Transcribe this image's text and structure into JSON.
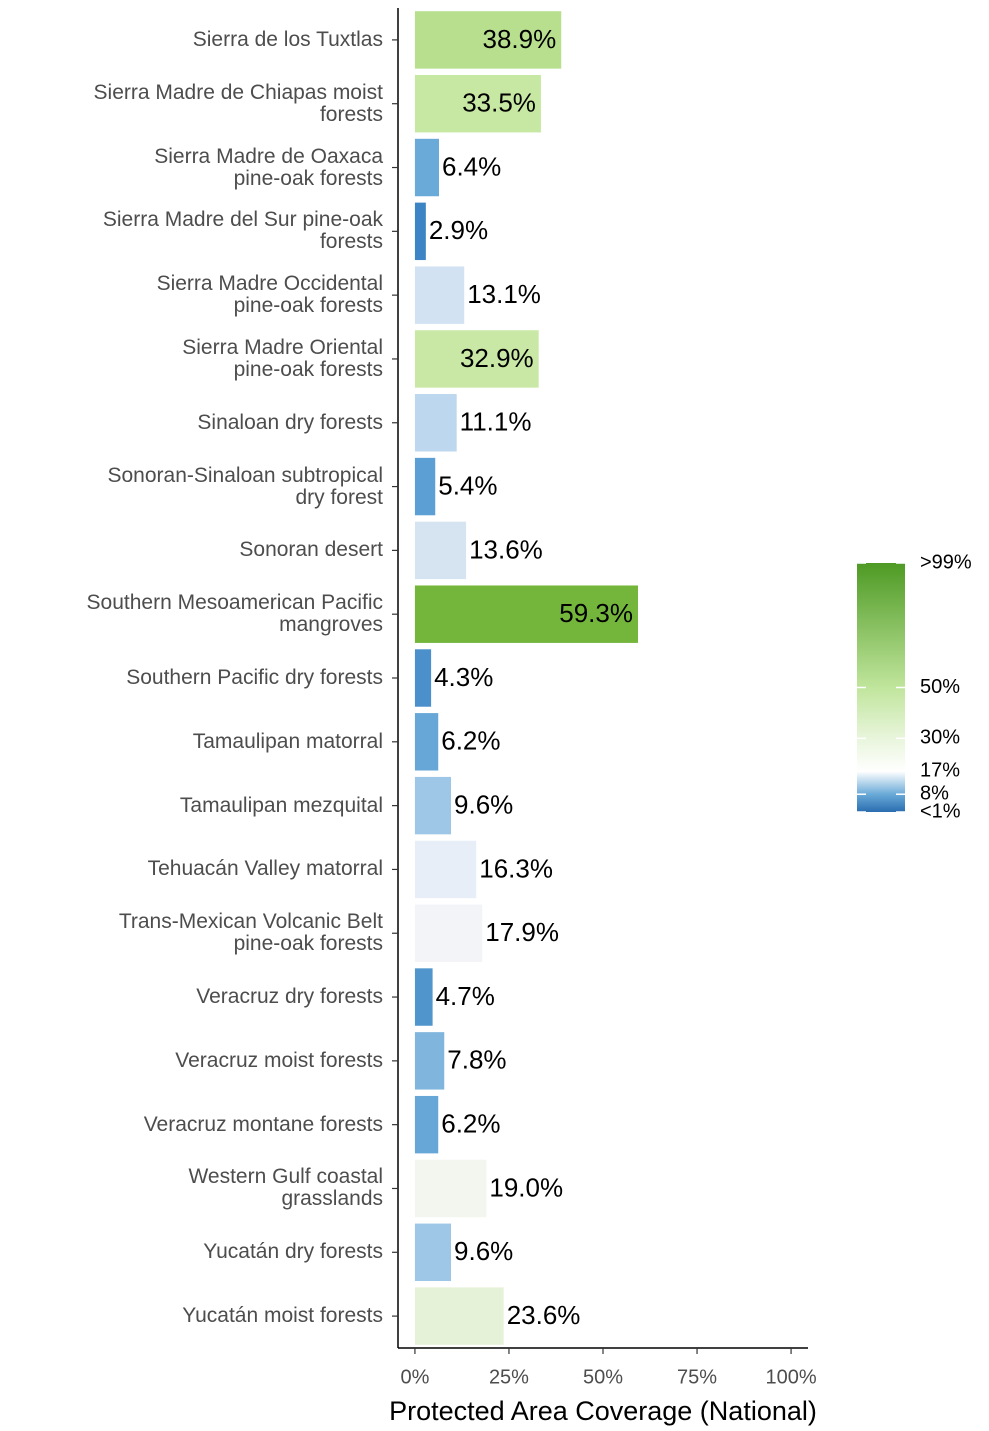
{
  "chart_data": {
    "type": "bar",
    "orientation": "horizontal",
    "categories": [
      "Sierra de los Tuxtlas",
      "Sierra Madre de Chiapas moist\nforests",
      "Sierra Madre de Oaxaca\npine-oak forests",
      "Sierra Madre del Sur pine-oak\nforests",
      "Sierra Madre Occidental\npine-oak forests",
      "Sierra Madre Oriental\npine-oak forests",
      "Sinaloan dry forests",
      "Sonoran-Sinaloan subtropical\ndry forest",
      "Sonoran desert",
      "Southern Mesoamerican Pacific\nmangroves",
      "Southern Pacific dry forests",
      "Tamaulipan matorral",
      "Tamaulipan mezquital",
      "Tehuacán Valley matorral",
      "Trans-Mexican Volcanic Belt\npine-oak forests",
      "Veracruz dry forests",
      "Veracruz moist forests",
      "Veracruz montane forests",
      "Western Gulf coastal\ngrasslands",
      "Yucatán dry forests",
      "Yucatán moist forests"
    ],
    "values": [
      38.9,
      33.5,
      6.4,
      2.9,
      13.1,
      32.9,
      11.1,
      5.4,
      13.6,
      59.3,
      4.3,
      6.2,
      9.6,
      16.3,
      17.9,
      4.7,
      7.8,
      6.2,
      19.0,
      9.6,
      23.6
    ],
    "value_labels": [
      "38.9%",
      "33.5%",
      "6.4%",
      "2.9%",
      "13.1%",
      "32.9%",
      "11.1%",
      "5.4%",
      "13.6%",
      "59.3%",
      "4.3%",
      "6.2%",
      "9.6%",
      "16.3%",
      "17.9%",
      "4.7%",
      "7.8%",
      "6.2%",
      "19.0%",
      "9.6%",
      "23.6%"
    ],
    "colors": [
      "#b7df8e",
      "#c7e8a3",
      "#6aaad8",
      "#3d84c4",
      "#d2e2f2",
      "#c9e8a5",
      "#bdd7ee",
      "#5b9fd4",
      "#d6e4f2",
      "#73b63b",
      "#4b8fcb",
      "#66a7d7",
      "#9ec6e6",
      "#e7eef8",
      "#f3f4f7",
      "#5096cd",
      "#80b6de",
      "#66a7d7",
      "#f2f6ee",
      "#9ec6e6",
      "#e6f2d8"
    ],
    "xlabel": "Protected Area Coverage (National)",
    "xlim": [
      -4.5,
      104.5
    ],
    "xticks": [
      {
        "value": 0,
        "label": "0%"
      },
      {
        "value": 25,
        "label": "25%"
      },
      {
        "value": 50,
        "label": "50%"
      },
      {
        "value": 75,
        "label": "75%"
      },
      {
        "value": 100,
        "label": "100%"
      }
    ],
    "legend": {
      "limits": [
        1,
        99
      ],
      "ticks": [
        {
          "value": 1,
          "label": "<1%"
        },
        {
          "value": 8,
          "label": "8%"
        },
        {
          "value": 17,
          "label": "17%"
        },
        {
          "value": 30,
          "label": "30%"
        },
        {
          "value": 50,
          "label": "50%"
        },
        {
          "value": 99,
          "label": ">99%"
        }
      ],
      "stops": [
        {
          "value": 1,
          "color": "#2a6db0"
        },
        {
          "value": 8,
          "color": "#6aaad8"
        },
        {
          "value": 17,
          "color": "#ffffff"
        },
        {
          "value": 30,
          "color": "#e8f5db"
        },
        {
          "value": 50,
          "color": "#c0e59c"
        },
        {
          "value": 99,
          "color": "#4e9a24"
        }
      ]
    }
  }
}
